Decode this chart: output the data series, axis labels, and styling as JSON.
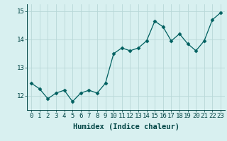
{
  "x": [
    0,
    1,
    2,
    3,
    4,
    5,
    6,
    7,
    8,
    9,
    10,
    11,
    12,
    13,
    14,
    15,
    16,
    17,
    18,
    19,
    20,
    21,
    22,
    23
  ],
  "y": [
    12.45,
    12.25,
    11.9,
    12.1,
    12.2,
    11.8,
    12.1,
    12.2,
    12.1,
    12.45,
    13.5,
    13.7,
    13.6,
    13.7,
    13.95,
    14.65,
    14.45,
    13.95,
    14.2,
    13.85,
    13.6,
    13.95,
    14.7,
    14.95
  ],
  "line_color": "#006060",
  "marker": "D",
  "marker_size": 2.5,
  "bg_color": "#d8f0f0",
  "grid_color": "#b8d8d8",
  "xlabel": "Humidex (Indice chaleur)",
  "ylim": [
    11.5,
    15.25
  ],
  "xlim": [
    -0.5,
    23.5
  ],
  "yticks": [
    12,
    13,
    14,
    15
  ],
  "xticks": [
    0,
    1,
    2,
    3,
    4,
    5,
    6,
    7,
    8,
    9,
    10,
    11,
    12,
    13,
    14,
    15,
    16,
    17,
    18,
    19,
    20,
    21,
    22,
    23
  ],
  "tick_color": "#004444",
  "label_color": "#004444",
  "font_size": 6.5,
  "xlabel_fontsize": 7.5,
  "linewidth": 0.9
}
